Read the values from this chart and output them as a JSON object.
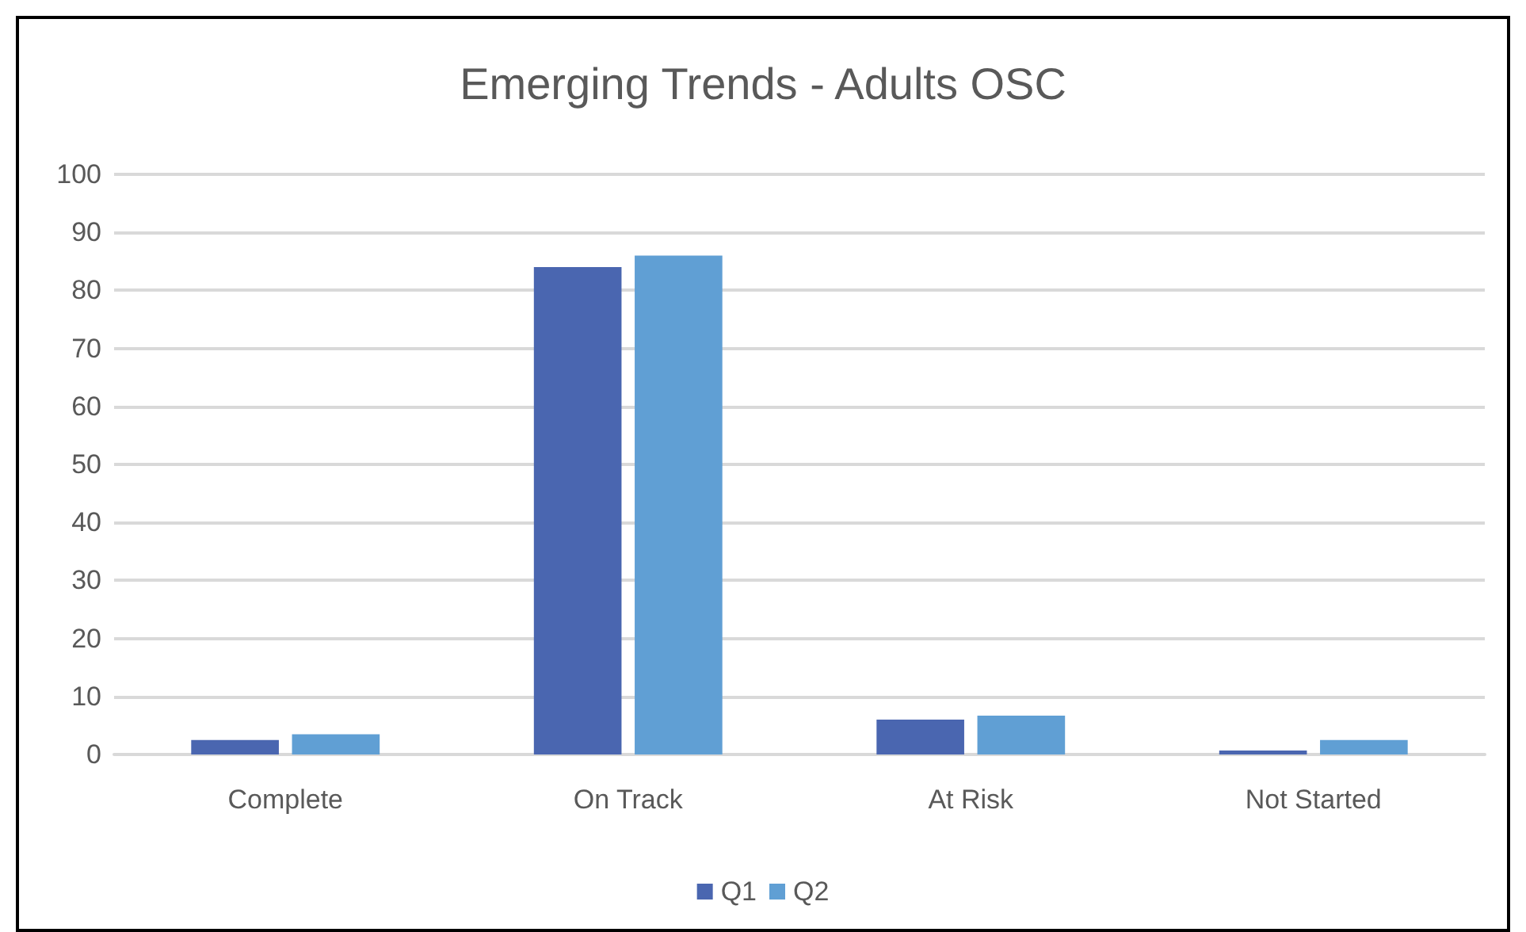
{
  "chart_data": {
    "type": "bar",
    "title": "Emerging Trends - Adults OSC",
    "categories": [
      "Complete",
      "On Track",
      "At Risk",
      "Not Started"
    ],
    "series": [
      {
        "name": "Q1",
        "color": "#4a66b0",
        "values": [
          2.5,
          84,
          6,
          0.7
        ]
      },
      {
        "name": "Q2",
        "color": "#609fd4",
        "values": [
          3.5,
          86,
          6.7,
          2.5
        ]
      }
    ],
    "ylim": [
      0,
      100
    ],
    "yticks": [
      0,
      10,
      20,
      30,
      40,
      50,
      60,
      70,
      80,
      90,
      100
    ],
    "grid": "y",
    "legend": "bottom"
  }
}
